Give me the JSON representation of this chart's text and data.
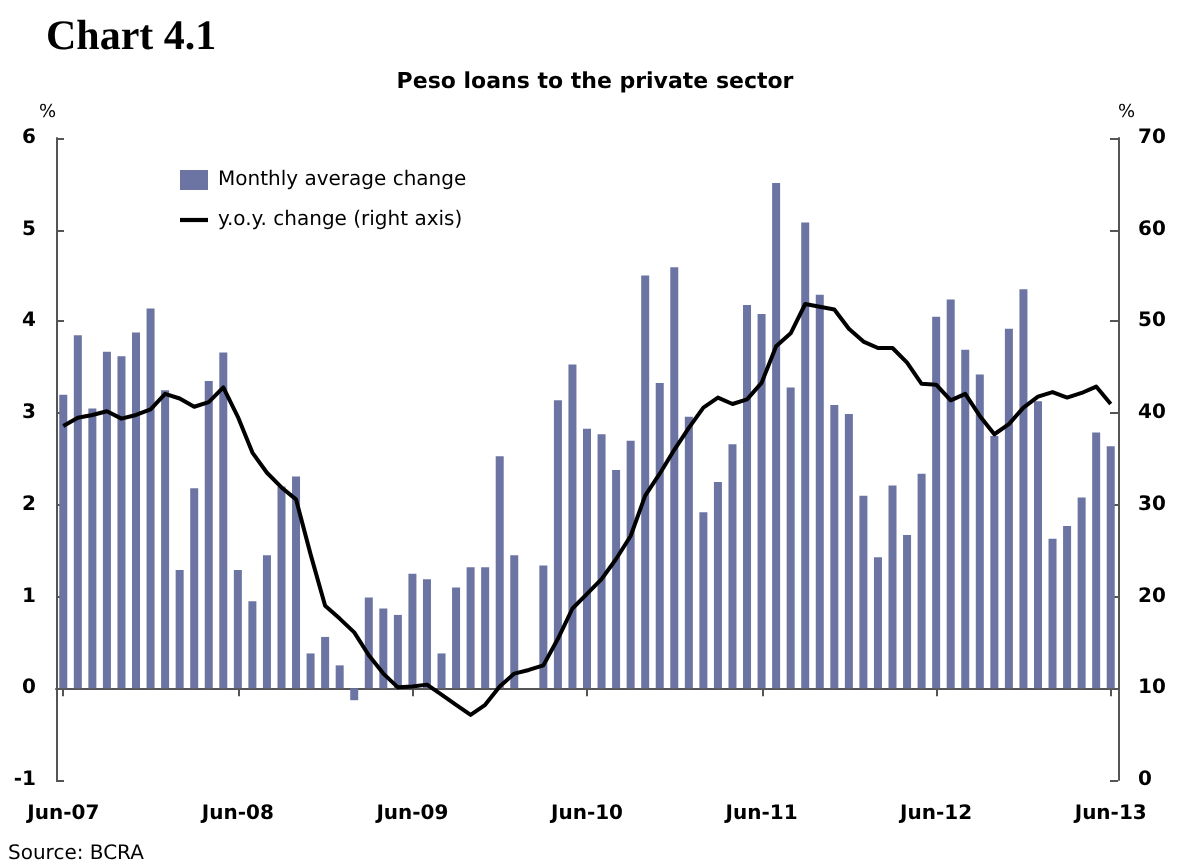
{
  "chart_data": {
    "type": "bar",
    "title": "Chart 4.1",
    "subtitle": "Peso loans to the private sector",
    "ylabel": "%",
    "y2label": "%",
    "annotations": [
      "Source: BCRA"
    ],
    "categories": [
      "Jun-07",
      null,
      null,
      null,
      null,
      null,
      null,
      null,
      null,
      null,
      null,
      null,
      "Jun-08",
      null,
      null,
      null,
      null,
      null,
      null,
      null,
      null,
      null,
      null,
      null,
      "Jun-09",
      null,
      null,
      null,
      null,
      null,
      null,
      null,
      null,
      null,
      null,
      null,
      "Jun-10",
      null,
      null,
      null,
      null,
      null,
      null,
      null,
      null,
      null,
      null,
      null,
      "Jun-11",
      null,
      null,
      null,
      null,
      null,
      null,
      null,
      null,
      null,
      null,
      null,
      "Jun-12",
      null,
      null,
      null,
      null,
      null,
      null,
      null,
      null,
      null,
      null,
      null,
      "Jun-13"
    ],
    "series": [
      {
        "name": "Monthly average change",
        "color": "#6b74a2",
        "values": [
          3.2,
          3.85,
          3.05,
          3.67,
          3.62,
          3.88,
          4.14,
          3.25,
          1.29,
          2.18,
          3.35,
          3.66,
          1.29,
          0.95,
          1.45,
          2.2,
          2.31,
          0.38,
          0.56,
          0.25,
          -0.13,
          0.99,
          0.87,
          0.8,
          1.25,
          1.19,
          0.38,
          1.1,
          1.32,
          1.32,
          2.53,
          1.45,
          0,
          1.34,
          3.14,
          3.53,
          2.83,
          2.77,
          2.38,
          2.7,
          4.5,
          3.33,
          4.59,
          2.96,
          1.92,
          2.25,
          2.66,
          4.18,
          4.08,
          5.51,
          3.28,
          5.08,
          4.29,
          3.09,
          2.99,
          2.1,
          1.43,
          2.21,
          1.67,
          2.34,
          4.05,
          4.24,
          3.69,
          3.42,
          2.75,
          3.92,
          4.35,
          3.13,
          1.63,
          1.77,
          2.08,
          2.79,
          2.64
        ]
      },
      {
        "name": "y.o.y. change (right axis)",
        "type": "line",
        "axis": "y2",
        "color": "#000000",
        "values": [
          38.6,
          39.5,
          39.8,
          40.2,
          39.4,
          39.8,
          40.4,
          42.1,
          41.6,
          40.7,
          41.2,
          42.8,
          39.6,
          35.7,
          33.5,
          31.9,
          30.6,
          24.6,
          19.0,
          17.6,
          16.1,
          13.6,
          11.6,
          10.1,
          10.2,
          10.4,
          9.3,
          8.2,
          7.1,
          8.2,
          10.2,
          11.6,
          12.0,
          12.5,
          15.4,
          18.7,
          20.3,
          21.9,
          24.1,
          26.6,
          31.0,
          33.4,
          36.0,
          38.4,
          40.6,
          41.7,
          41.0,
          41.5,
          43.3,
          47.3,
          48.7,
          51.9,
          51.6,
          51.3,
          49.2,
          47.8,
          47.1,
          47.1,
          45.5,
          43.2,
          43.1,
          41.4,
          42.1,
          39.7,
          37.7,
          38.8,
          40.6,
          41.8,
          42.3,
          41.7,
          42.2,
          42.9,
          41.0
        ]
      }
    ],
    "ylim": [
      -1,
      6
    ],
    "yticks": [
      -1,
      0,
      1,
      2,
      3,
      4,
      5,
      6
    ],
    "y2lim": [
      0,
      70
    ],
    "y2ticks": [
      0,
      10,
      20,
      30,
      40,
      50,
      60,
      70
    ],
    "legend": "top left",
    "marker": "none"
  }
}
